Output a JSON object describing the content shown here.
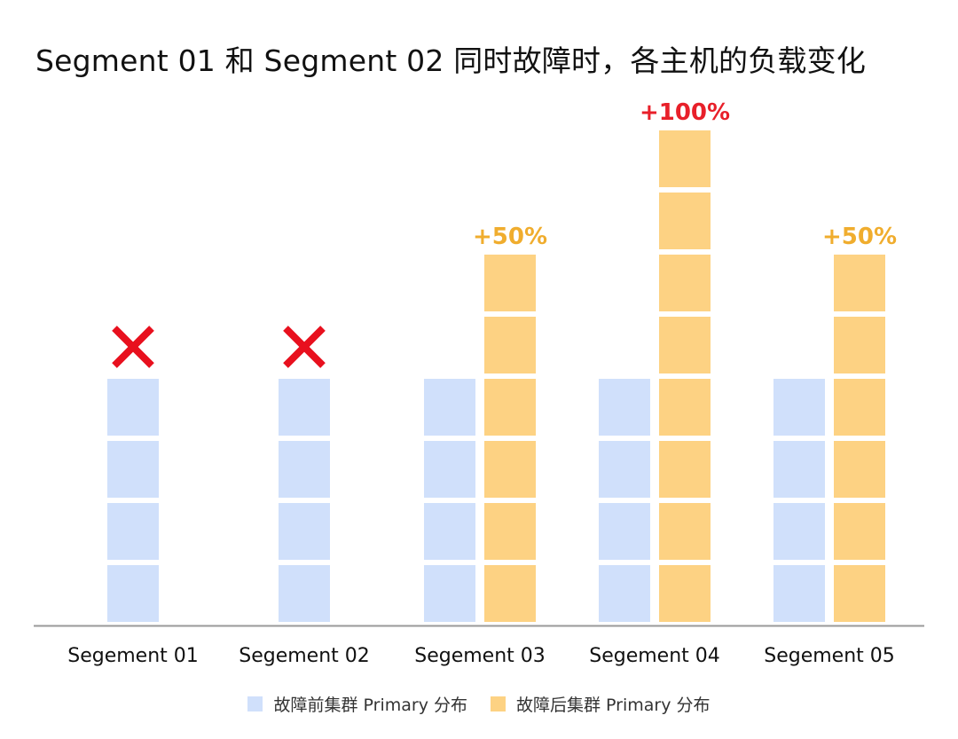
{
  "chart_data": {
    "type": "bar",
    "title": "Segment 01 和 Segment 02 同时故障时，各主机的负载变化",
    "categories": [
      "Segement 01",
      "Segement 02",
      "Segement 03",
      "Segement 04",
      "Segement 05"
    ],
    "series": [
      {
        "name": "故障前集群 Primary 分布",
        "values": [
          4,
          4,
          4,
          4,
          4
        ],
        "color": "#d0e0fb"
      },
      {
        "name": "故障后集群 Primary 分布",
        "values": [
          0,
          0,
          6,
          8,
          6
        ],
        "color": "#fdd283"
      }
    ],
    "failed": [
      true,
      true,
      false,
      false,
      false
    ],
    "annotations": [
      "",
      "",
      "+50%",
      "+100%",
      "+50%"
    ],
    "annotation_colors": [
      "",
      "",
      "#f0ad2e",
      "#e8202a",
      "#f0ad2e"
    ],
    "failed_mark_color": "#e8101e",
    "xlabel": "",
    "ylabel": "",
    "ylim": [
      0,
      8
    ],
    "grid": false,
    "legend_position": "bottom"
  }
}
